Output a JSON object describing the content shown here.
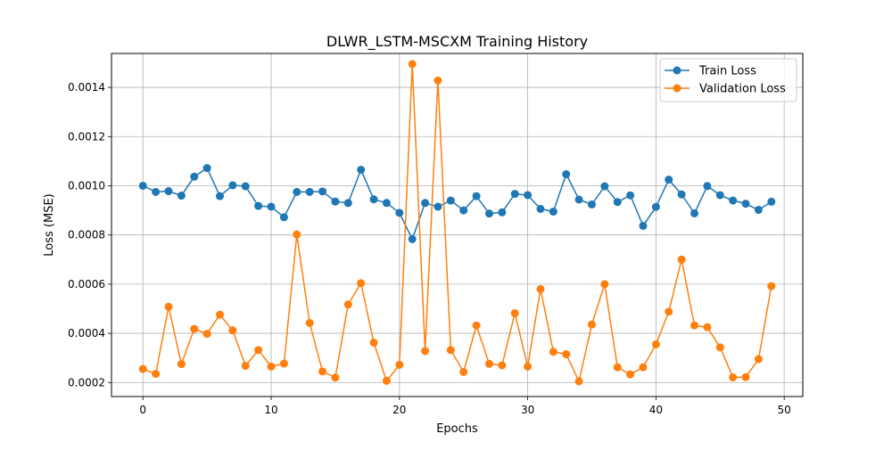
{
  "chart_data": {
    "type": "line",
    "title": "DLWR_LSTM-MSCXM Training History",
    "xlabel": "Epochs",
    "ylabel": "Loss (MSE)",
    "xlim": [
      -2.45,
      51.45
    ],
    "ylim": [
      0.000143,
      0.001538
    ],
    "grid": true,
    "legend_position": "top-right",
    "x_ticks": [
      0,
      10,
      20,
      30,
      40,
      50
    ],
    "x_tick_labels": [
      "0",
      "10",
      "20",
      "30",
      "40",
      "50"
    ],
    "y_ticks": [
      0.0002,
      0.0004,
      0.0006,
      0.0008,
      0.001,
      0.0012,
      0.0014
    ],
    "y_tick_labels": [
      "0.0002",
      "0.0004",
      "0.0006",
      "0.0008",
      "0.0010",
      "0.0012",
      "0.0014"
    ],
    "x": [
      0,
      1,
      2,
      3,
      4,
      5,
      6,
      7,
      8,
      9,
      10,
      11,
      12,
      13,
      14,
      15,
      16,
      17,
      18,
      19,
      20,
      21,
      22,
      23,
      24,
      25,
      26,
      27,
      28,
      29,
      30,
      31,
      32,
      33,
      34,
      35,
      36,
      37,
      38,
      39,
      40,
      41,
      42,
      43,
      44,
      45,
      46,
      47,
      48,
      49
    ],
    "series": [
      {
        "name": "Train Loss",
        "color": "#1f77b4",
        "values": [
          0.001,
          0.000975,
          0.000978,
          0.00096,
          0.001037,
          0.001072,
          0.000958,
          0.001002,
          0.000998,
          0.000918,
          0.000915,
          0.000872,
          0.000975,
          0.000975,
          0.000977,
          0.000936,
          0.00093,
          0.001065,
          0.000945,
          0.00093,
          0.00089,
          0.000783,
          0.00093,
          0.000915,
          0.00094,
          0.0009,
          0.000958,
          0.000887,
          0.000892,
          0.000967,
          0.000962,
          0.000906,
          0.000895,
          0.001047,
          0.000944,
          0.000924,
          0.000998,
          0.000934,
          0.000961,
          0.000837,
          0.000914,
          0.001025,
          0.000965,
          0.000888,
          0.000999,
          0.000962,
          0.00094,
          0.000927,
          0.000902,
          0.000935
        ]
      },
      {
        "name": "Validation Loss",
        "color": "#ff7f0e",
        "values": [
          0.000255,
          0.000235,
          0.000508,
          0.000275,
          0.000418,
          0.000398,
          0.000476,
          0.000412,
          0.000268,
          0.000332,
          0.000265,
          0.000277,
          0.000802,
          0.000442,
          0.000245,
          0.00022,
          0.000517,
          0.000604,
          0.000362,
          0.000207,
          0.000272,
          0.001495,
          0.000328,
          0.001428,
          0.000332,
          0.000243,
          0.000432,
          0.000276,
          0.00027,
          0.000482,
          0.000265,
          0.00058,
          0.000325,
          0.000315,
          0.000205,
          0.000436,
          0.0006,
          0.000262,
          0.000233,
          0.000262,
          0.000355,
          0.000488,
          0.0007,
          0.000432,
          0.000425,
          0.000343,
          0.000221,
          0.000222,
          0.000295,
          0.000592
        ]
      }
    ]
  }
}
